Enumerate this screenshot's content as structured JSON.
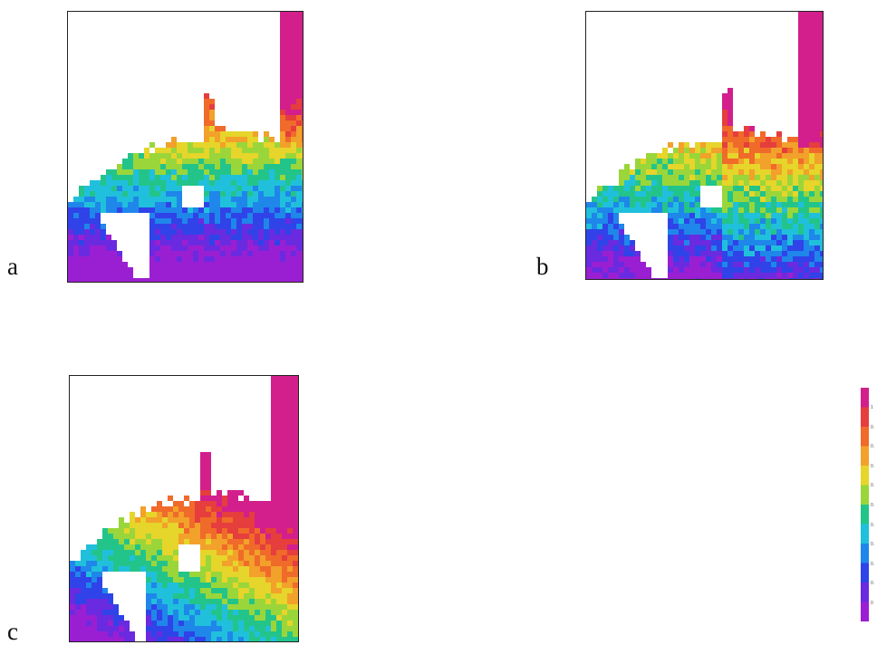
{
  "panels": [
    {
      "label": "a"
    },
    {
      "label": "b"
    },
    {
      "label": "c"
    }
  ],
  "colorbar": {
    "ticks": [
      "1",
      "0.",
      "0.",
      "0.",
      "0.",
      "0.",
      "0.",
      "0.",
      "0.",
      "0.",
      "0"
    ],
    "colors": [
      "#9b1fd2",
      "#6a2ae0",
      "#2f43e8",
      "#1f86ea",
      "#20c0dc",
      "#23c48a",
      "#9ad63a",
      "#e6d52a",
      "#f2a12a",
      "#f06a2a",
      "#e63d3d",
      "#d21f8c"
    ]
  }
}
